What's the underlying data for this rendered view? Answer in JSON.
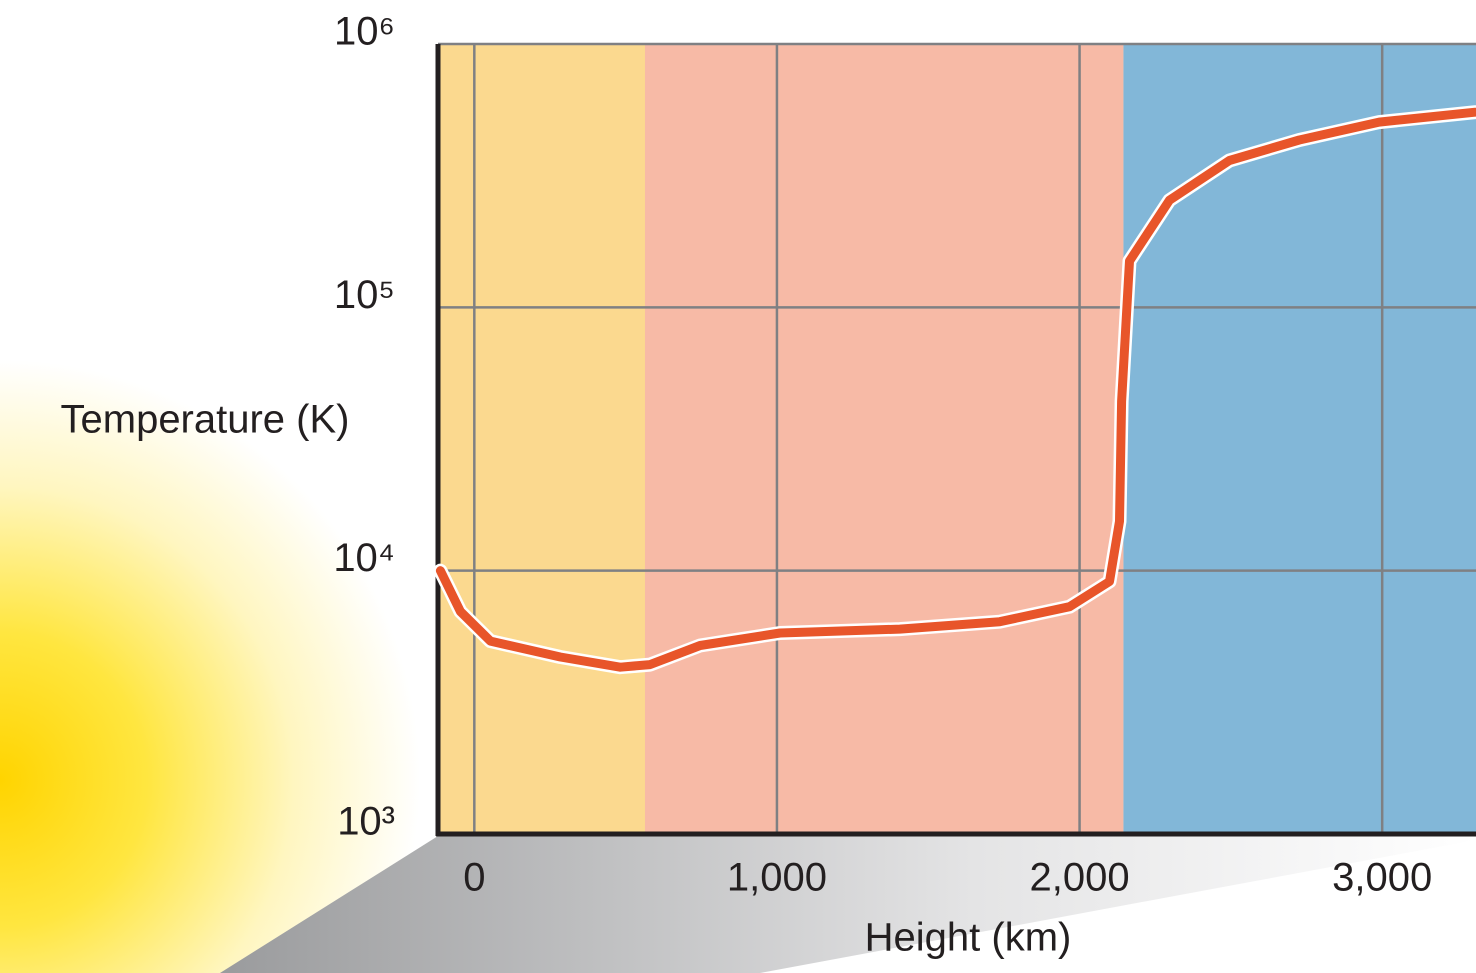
{
  "chart_data": {
    "type": "line",
    "x_label": "Height (km)",
    "y_label": "Temperature (K)",
    "xlim": [
      -120,
      3310
    ],
    "ylim": [
      1000,
      1000000
    ],
    "y_scale": "log",
    "grid": true,
    "xticks": [
      0,
      {
        "value": 1000,
        "label": "1,000"
      },
      {
        "value": 2000,
        "label": "2,000"
      },
      {
        "value": 3000,
        "label": "3,000"
      }
    ],
    "yticks": [
      {
        "value": 1000,
        "label": "10³"
      },
      {
        "value": 10000,
        "label": "10⁴"
      },
      {
        "value": 100000,
        "label": "10⁵"
      },
      {
        "value": 1000000,
        "label": "10⁶"
      }
    ],
    "bands": [
      {
        "from": -120,
        "to": 564,
        "color": "#fbd98f"
      },
      {
        "from": 564,
        "to": 2145,
        "color": "#f7baa6"
      },
      {
        "from": 2145,
        "to": 3310,
        "color": "#82b7d8"
      }
    ],
    "series": [
      {
        "color": "#e8552a",
        "x": [
          -112,
          -46,
          53,
          284,
          482,
          581,
          746,
          1010,
          1406,
          1736,
          1967,
          2099,
          2132,
          2139,
          2165,
          2297,
          2495,
          2726,
          2990,
          3307
        ],
        "values": [
          10000,
          7000,
          5400,
          4700,
          4300,
          4400,
          5200,
          5800,
          6000,
          6400,
          7300,
          9100,
          15400,
          44000,
          150000,
          255000,
          361000,
          432000,
          505000,
          551000
        ]
      }
    ]
  }
}
